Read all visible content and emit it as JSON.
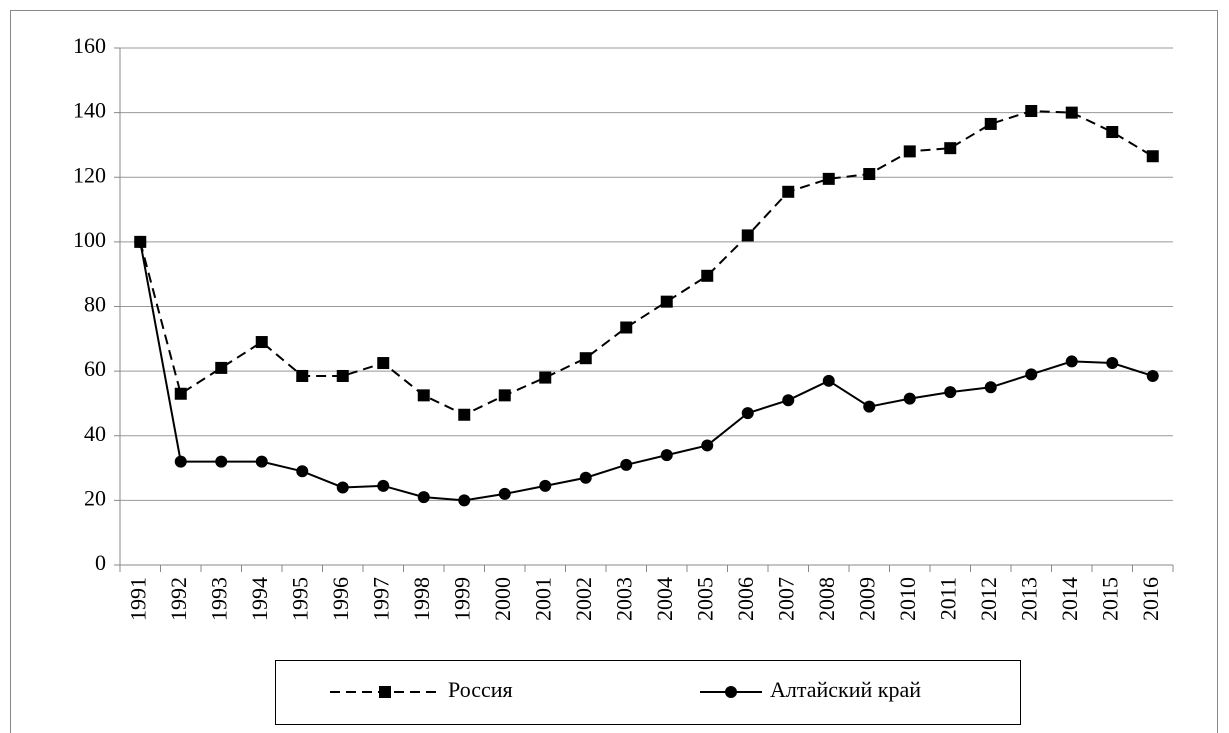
{
  "chart_data": {
    "type": "line",
    "categories": [
      "1991",
      "1992",
      "1993",
      "1994",
      "1995",
      "1996",
      "1997",
      "1998",
      "1999",
      "2000",
      "2001",
      "2002",
      "2003",
      "2004",
      "2005",
      "2006",
      "2007",
      "2008",
      "2009",
      "2010",
      "2011",
      "2012",
      "2013",
      "2014",
      "2015",
      "2016"
    ],
    "series": [
      {
        "name": "Россия",
        "color": "#000000",
        "dash": "dashed",
        "marker": "square",
        "values": [
          100,
          53,
          61,
          69,
          58.5,
          58.5,
          62.5,
          52.5,
          46.5,
          52.5,
          58,
          64,
          73.5,
          81.5,
          89.5,
          102,
          115.5,
          119.5,
          121,
          128,
          129,
          136.5,
          140.5,
          140,
          134,
          126.5
        ]
      },
      {
        "name": "Алтайский край",
        "color": "#000000",
        "dash": "solid",
        "marker": "circle",
        "values": [
          100,
          32,
          32,
          32,
          29,
          24,
          24.5,
          21,
          20,
          22,
          24.5,
          27,
          31,
          34,
          37,
          47,
          51,
          57,
          49,
          51.5,
          53.5,
          55,
          59,
          63,
          62.5,
          58.5
        ]
      }
    ],
    "ylim": [
      0,
      160
    ],
    "yticks": [
      0,
      20,
      40,
      60,
      80,
      100,
      120,
      140,
      160
    ],
    "grid": true,
    "legend": "bottom"
  }
}
